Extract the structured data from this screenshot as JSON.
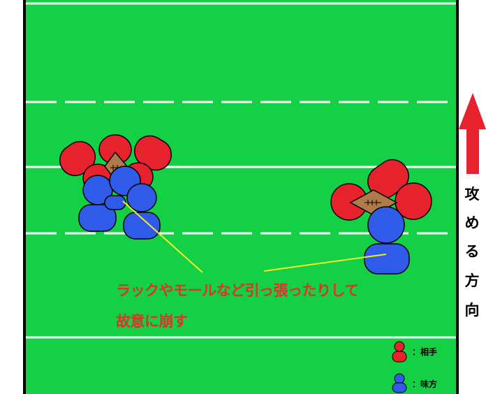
{
  "annotation": {
    "line1": "ラックやモールなど引っ張ったりして",
    "line2": "故意に崩す"
  },
  "direction": {
    "chars": [
      "攻",
      "め",
      "る",
      "方",
      "向"
    ]
  },
  "legend": {
    "opponent": {
      "label": "：相手",
      "color": "#e6222c"
    },
    "ally": {
      "label": "：味方",
      "color": "#2f5be8"
    }
  },
  "colors": {
    "field": "#14d044",
    "opponent": "#e6222c",
    "ally": "#2f5be8",
    "ball": "#b07a4a",
    "pointer": "#f2ee2b",
    "arrow": "#e6222c"
  }
}
